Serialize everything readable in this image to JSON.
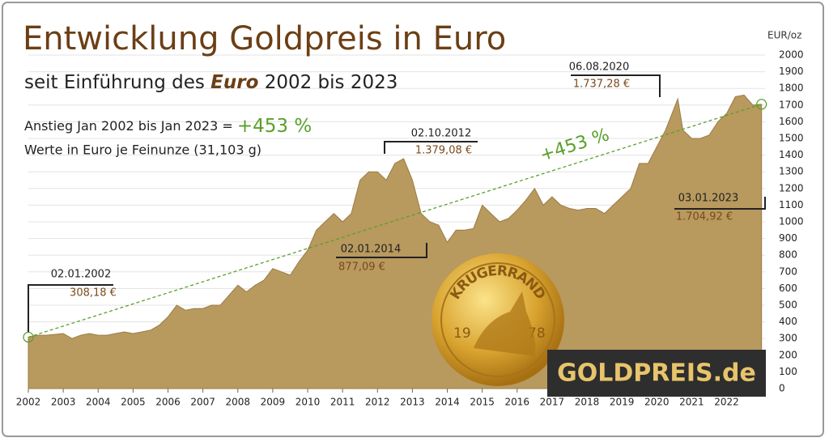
{
  "chart_data": {
    "type": "area",
    "title": "Entwicklung Goldpreis in Euro",
    "subtitle": [
      "seit Einführung des ",
      "Euro",
      " 2002 bis 2023"
    ],
    "note_prefix": "Anstieg Jan 2002 bis Jan 2023 = ",
    "note_units": "Werte in Euro je Feinunze (31,103 g)",
    "y_label": "EUR/oz",
    "color": "#b8995e",
    "x": [
      2002,
      2002.25,
      2002.5,
      2002.75,
      2003,
      2003.25,
      2003.5,
      2003.75,
      2004,
      2004.25,
      2004.5,
      2004.75,
      2005,
      2005.25,
      2005.5,
      2005.75,
      2006,
      2006.25,
      2006.5,
      2006.75,
      2007,
      2007.25,
      2007.5,
      2007.75,
      2008,
      2008.25,
      2008.5,
      2008.75,
      2009,
      2009.25,
      2009.5,
      2009.75,
      2010,
      2010.25,
      2010.5,
      2010.75,
      2011,
      2011.25,
      2011.5,
      2011.75,
      2012,
      2012.25,
      2012.5,
      2012.75,
      2013,
      2013.25,
      2013.5,
      2013.75,
      2014,
      2014.25,
      2014.5,
      2014.75,
      2015,
      2015.25,
      2015.5,
      2015.75,
      2016,
      2016.25,
      2016.5,
      2016.75,
      2017,
      2017.25,
      2017.5,
      2017.75,
      2018,
      2018.25,
      2018.5,
      2018.75,
      2019,
      2019.25,
      2019.5,
      2019.75,
      2020,
      2020.25,
      2020.6,
      2020.75,
      2021,
      2021.25,
      2021.5,
      2021.75,
      2022,
      2022.25,
      2022.5,
      2022.75,
      2023
    ],
    "values": [
      308,
      320,
      320,
      325,
      330,
      300,
      320,
      330,
      320,
      320,
      330,
      340,
      330,
      340,
      350,
      380,
      430,
      500,
      470,
      480,
      480,
      500,
      500,
      560,
      620,
      580,
      620,
      650,
      720,
      700,
      680,
      760,
      830,
      950,
      1000,
      1050,
      1000,
      1050,
      1250,
      1300,
      1300,
      1250,
      1350,
      1379,
      1250,
      1050,
      1000,
      980,
      877,
      950,
      950,
      960,
      1100,
      1050,
      1000,
      1020,
      1070,
      1130,
      1200,
      1100,
      1150,
      1100,
      1080,
      1070,
      1080,
      1080,
      1050,
      1100,
      1150,
      1200,
      1350,
      1350,
      1450,
      1550,
      1737,
      1550,
      1500,
      1500,
      1520,
      1600,
      1650,
      1750,
      1760,
      1700,
      1705
    ],
    "xlim": [
      2002,
      2023.1
    ],
    "xticks": [
      2002,
      2003,
      2004,
      2005,
      2006,
      2007,
      2008,
      2009,
      2010,
      2011,
      2012,
      2013,
      2014,
      2015,
      2016,
      2017,
      2018,
      2019,
      2020,
      2021,
      2022
    ],
    "ylim": [
      0,
      2000
    ],
    "yticks": [
      0,
      100,
      200,
      300,
      400,
      500,
      600,
      700,
      800,
      900,
      1000,
      1100,
      1200,
      1300,
      1400,
      1500,
      1600,
      1700,
      1800,
      1900,
      2000
    ],
    "grid": true,
    "trend": {
      "x": [
        2002,
        2023
      ],
      "values": [
        308.18,
        1704.92
      ],
      "label": "+453 %",
      "color": "#5aa02c"
    },
    "annotations": [
      {
        "date": "02.01.2002",
        "value": 308.18,
        "value_label": "308,18 €"
      },
      {
        "date": "02.10.2012",
        "value": 1379.08,
        "value_label": "1.379,08 €"
      },
      {
        "date": "02.01.2014",
        "value": 877.09,
        "value_label": "877,09 €"
      },
      {
        "date": "06.08.2020",
        "value": 1737.28,
        "value_label": "1.737,28 €"
      },
      {
        "date": "03.01.2023",
        "value": 1704.92,
        "value_label": "1.704,92 €"
      }
    ],
    "coin": {
      "top": "KRUGERRAND",
      "left": "19",
      "right": "78"
    },
    "logo": "GOLDPREIS.de"
  }
}
